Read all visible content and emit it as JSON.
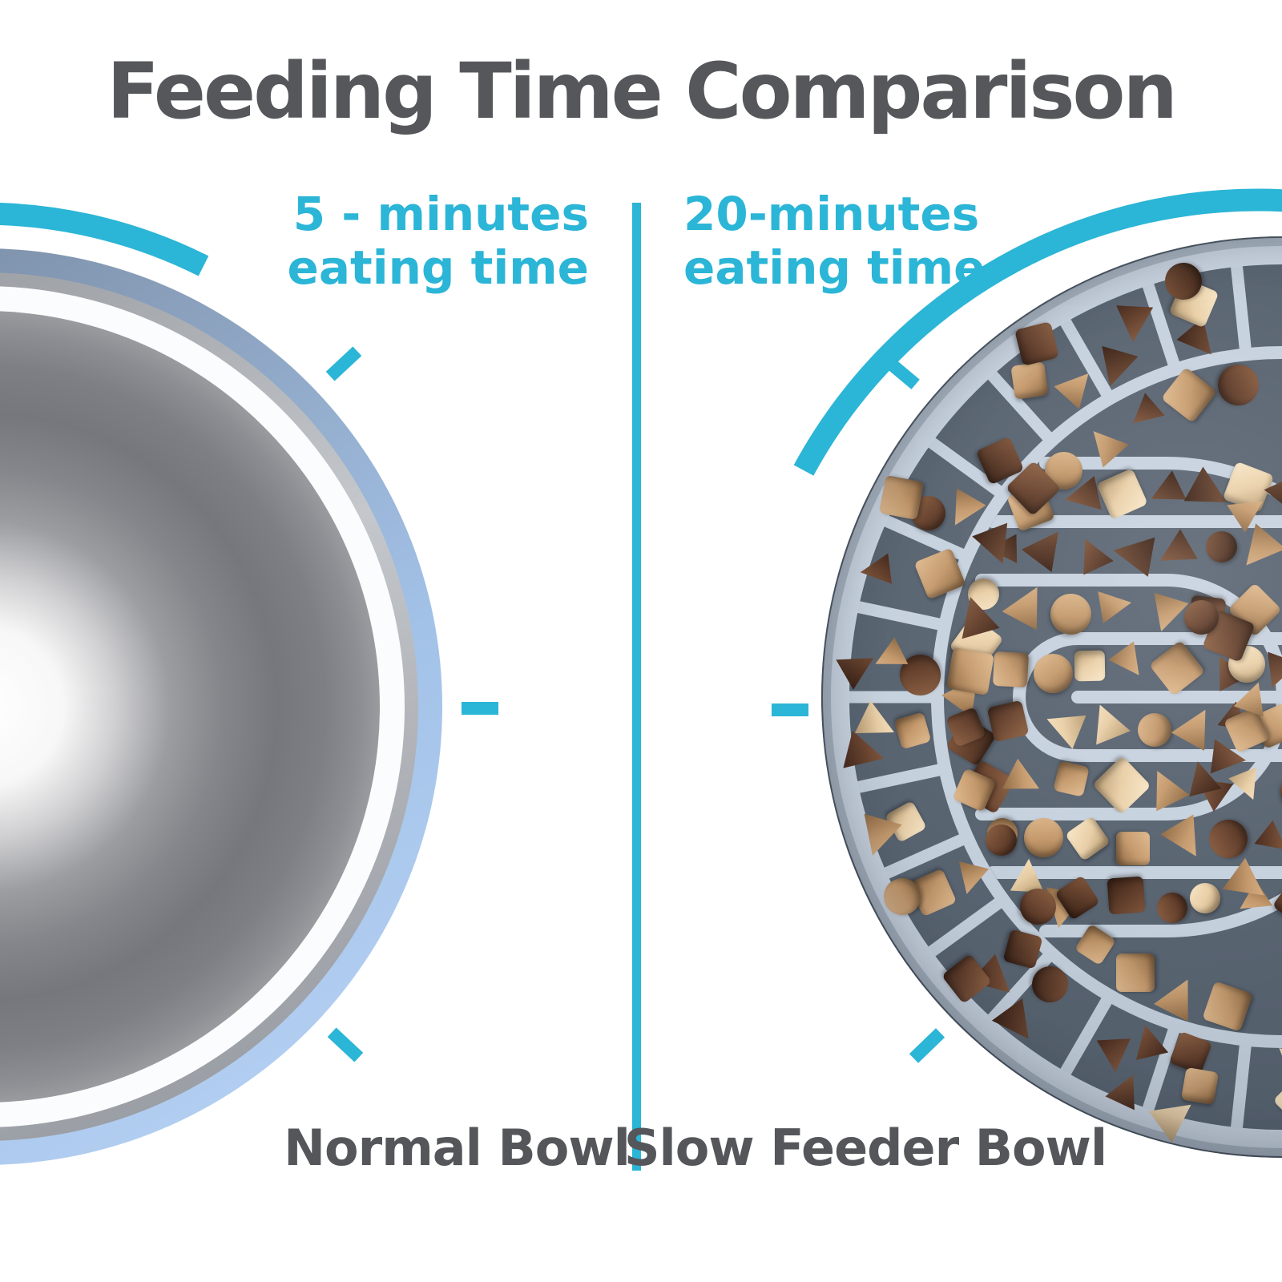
{
  "title": "Feeding Time Comparison",
  "left_bowl": {
    "time_line1": "5 - minutes",
    "time_line2": "eating time",
    "label": "Normal Bowl"
  },
  "right_bowl": {
    "time_line1": "20-minutes",
    "time_line2": "eating time",
    "label": "Slow Feeder Bowl"
  },
  "colors": {
    "accent_teal": "#2bb5d6",
    "title_gray": "#56575b",
    "label_gray": "#55565a",
    "normal_bowl_rim_blue": "#a3c2e8",
    "feeder_base": "#5a6572",
    "feeder_wall": "#c7d2df",
    "feeder_rim": "#ccd6e3",
    "kibble_palette": [
      {
        "base": "#c59a6d",
        "light": "#dcb68b",
        "dark": "#8f6a44",
        "w": 0.38
      },
      {
        "base": "#6b4530",
        "light": "#8a5f42",
        "dark": "#46291b",
        "w": 0.3
      },
      {
        "base": "#e9cfa7",
        "light": "#f6e3c2",
        "dark": "#b99c72",
        "w": 0.16
      },
      {
        "base": "#5b3a28",
        "light": "#7a5138",
        "dark": "#3a2115",
        "w": 0.16
      }
    ]
  }
}
